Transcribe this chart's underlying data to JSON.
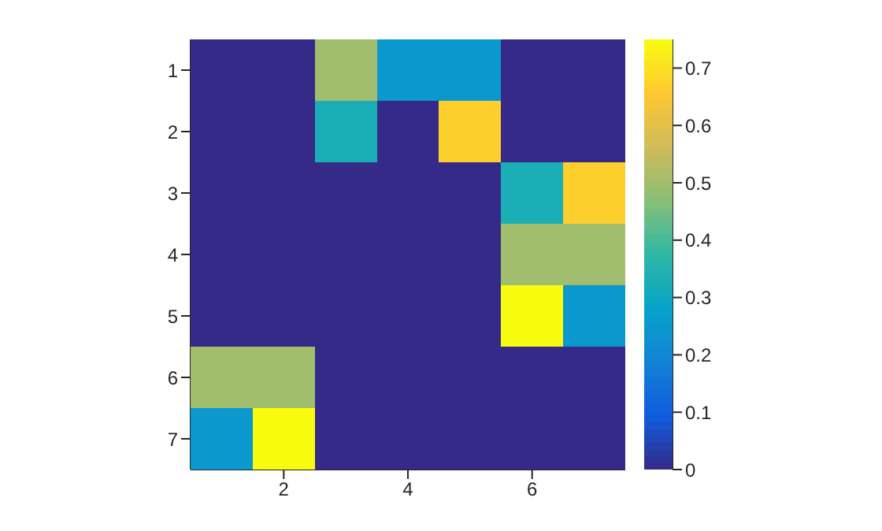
{
  "chart_data": {
    "type": "heatmap",
    "categories": [
      null,
      "2",
      null,
      "4",
      null,
      "6",
      null
    ],
    "y_categories": [
      "1",
      "2",
      "3",
      "4",
      "5",
      "6",
      "7"
    ],
    "cells": [
      [
        0,
        0,
        0.5,
        0.25,
        0.25,
        0,
        0
      ],
      [
        0,
        0,
        0.33,
        0,
        0.67,
        0,
        0
      ],
      [
        0,
        0,
        0,
        0,
        0,
        0.33,
        0.67
      ],
      [
        0,
        0,
        0,
        0,
        0,
        0.5,
        0.5
      ],
      [
        0,
        0,
        0,
        0,
        0,
        0.75,
        0.25
      ],
      [
        0.5,
        0.5,
        0,
        0,
        0,
        0,
        0
      ],
      [
        0.25,
        0.75,
        0,
        0,
        0,
        0,
        0
      ]
    ],
    "clim": [
      0,
      0.75
    ],
    "cticks": [
      0,
      0.1,
      0.2,
      0.3,
      0.4,
      0.5,
      0.6,
      0.7
    ]
  }
}
